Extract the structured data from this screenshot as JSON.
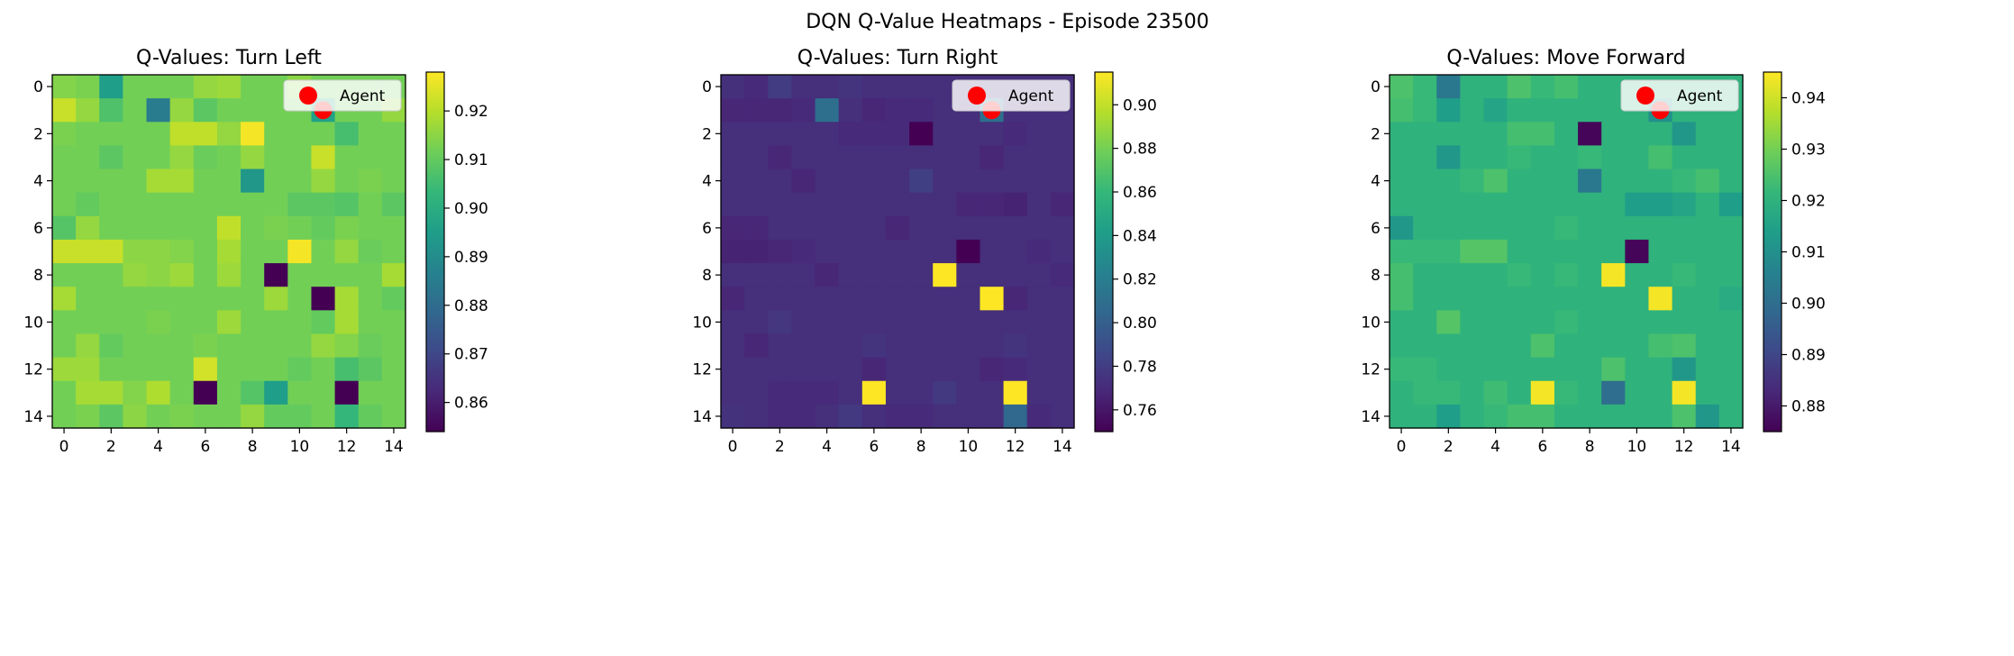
{
  "figure_title": "DQN Q-Value Heatmaps - Episode 23500",
  "chart_data": [
    {
      "type": "heatmap",
      "title": "Q-Values: Turn Left",
      "xlabel": "",
      "ylabel": "",
      "xticks": [
        0,
        2,
        4,
        6,
        8,
        10,
        12,
        14
      ],
      "yticks": [
        0,
        2,
        4,
        6,
        8,
        10,
        12,
        14
      ],
      "colormap": "viridis",
      "vmin": 0.854,
      "vmax": 0.928,
      "colorbar_ticks": [
        0.86,
        0.87,
        0.88,
        0.89,
        0.9,
        0.91,
        0.92
      ],
      "colorbar_tick_labels": [
        "0.86",
        "0.87",
        "0.88",
        "0.89",
        "0.90",
        "0.91",
        "0.92"
      ],
      "legend": {
        "label": "Agent",
        "placement": "upper right"
      },
      "agent": {
        "row": 1,
        "col": 11,
        "color": "#ff0000"
      },
      "values": [
        [
          0.914,
          0.913,
          0.895,
          0.912,
          0.912,
          0.912,
          0.916,
          0.917,
          0.912,
          0.912,
          0.915,
          0.912,
          0.912,
          0.912,
          0.912
        ],
        [
          0.922,
          0.916,
          0.907,
          0.912,
          0.885,
          0.916,
          0.909,
          0.912,
          0.912,
          0.912,
          0.912,
          0.896,
          0.912,
          0.912,
          0.916
        ],
        [
          0.913,
          0.912,
          0.912,
          0.912,
          0.912,
          0.921,
          0.921,
          0.916,
          0.927,
          0.912,
          0.912,
          0.912,
          0.906,
          0.912,
          0.912
        ],
        [
          0.912,
          0.912,
          0.909,
          0.912,
          0.912,
          0.916,
          0.911,
          0.912,
          0.916,
          0.912,
          0.912,
          0.922,
          0.912,
          0.912,
          0.912
        ],
        [
          0.912,
          0.912,
          0.912,
          0.912,
          0.918,
          0.918,
          0.912,
          0.912,
          0.893,
          0.912,
          0.912,
          0.916,
          0.912,
          0.913,
          0.912
        ],
        [
          0.912,
          0.91,
          0.912,
          0.912,
          0.912,
          0.912,
          0.912,
          0.912,
          0.912,
          0.912,
          0.909,
          0.909,
          0.908,
          0.912,
          0.909
        ],
        [
          0.908,
          0.916,
          0.912,
          0.912,
          0.912,
          0.912,
          0.912,
          0.921,
          0.912,
          0.913,
          0.912,
          0.91,
          0.913,
          0.912,
          0.912
        ],
        [
          0.922,
          0.922,
          0.922,
          0.915,
          0.915,
          0.914,
          0.912,
          0.918,
          0.912,
          0.912,
          0.927,
          0.912,
          0.916,
          0.911,
          0.912
        ],
        [
          0.912,
          0.912,
          0.912,
          0.916,
          0.915,
          0.917,
          0.912,
          0.917,
          0.912,
          0.854,
          0.912,
          0.912,
          0.912,
          0.912,
          0.918
        ],
        [
          0.918,
          0.912,
          0.912,
          0.912,
          0.912,
          0.912,
          0.912,
          0.912,
          0.912,
          0.917,
          0.912,
          0.854,
          0.918,
          0.912,
          0.91
        ],
        [
          0.912,
          0.912,
          0.912,
          0.912,
          0.913,
          0.912,
          0.912,
          0.917,
          0.912,
          0.912,
          0.912,
          0.91,
          0.918,
          0.912,
          0.912
        ],
        [
          0.912,
          0.916,
          0.91,
          0.912,
          0.912,
          0.912,
          0.913,
          0.912,
          0.912,
          0.912,
          0.912,
          0.916,
          0.914,
          0.911,
          0.912
        ],
        [
          0.917,
          0.917,
          0.912,
          0.912,
          0.912,
          0.912,
          0.923,
          0.912,
          0.912,
          0.912,
          0.91,
          0.912,
          0.906,
          0.909,
          0.912
        ],
        [
          0.912,
          0.918,
          0.918,
          0.914,
          0.919,
          0.912,
          0.854,
          0.912,
          0.908,
          0.895,
          0.912,
          0.912,
          0.854,
          0.912,
          0.912
        ],
        [
          0.912,
          0.913,
          0.909,
          0.915,
          0.912,
          0.913,
          0.912,
          0.912,
          0.916,
          0.91,
          0.91,
          0.912,
          0.903,
          0.91,
          0.912
        ]
      ]
    },
    {
      "type": "heatmap",
      "title": "Q-Values: Turn Right",
      "xlabel": "",
      "ylabel": "",
      "xticks": [
        0,
        2,
        4,
        6,
        8,
        10,
        12,
        14
      ],
      "yticks": [
        0,
        2,
        4,
        6,
        8,
        10,
        12,
        14
      ],
      "colormap": "viridis",
      "vmin": 0.75,
      "vmax": 0.915,
      "colorbar_ticks": [
        0.76,
        0.78,
        0.8,
        0.82,
        0.84,
        0.86,
        0.88,
        0.9
      ],
      "colorbar_tick_labels": [
        "0.76",
        "0.78",
        "0.80",
        "0.82",
        "0.84",
        "0.86",
        "0.88",
        "0.90"
      ],
      "legend": {
        "label": "Agent",
        "placement": "upper right"
      },
      "agent": {
        "row": 1,
        "col": 11,
        "color": "#ff0000"
      },
      "values": [
        [
          0.773,
          0.77,
          0.78,
          0.772,
          0.772,
          0.775,
          0.772,
          0.772,
          0.772,
          0.772,
          0.772,
          0.772,
          0.772,
          0.772,
          0.772
        ],
        [
          0.768,
          0.768,
          0.768,
          0.77,
          0.81,
          0.772,
          0.768,
          0.77,
          0.77,
          0.772,
          0.772,
          0.81,
          0.772,
          0.772,
          0.772
        ],
        [
          0.772,
          0.772,
          0.772,
          0.772,
          0.772,
          0.77,
          0.77,
          0.77,
          0.75,
          0.772,
          0.772,
          0.772,
          0.77,
          0.772,
          0.772
        ],
        [
          0.772,
          0.772,
          0.768,
          0.772,
          0.772,
          0.772,
          0.772,
          0.772,
          0.772,
          0.772,
          0.772,
          0.768,
          0.772,
          0.772,
          0.772
        ],
        [
          0.772,
          0.772,
          0.772,
          0.768,
          0.772,
          0.772,
          0.772,
          0.772,
          0.781,
          0.772,
          0.772,
          0.772,
          0.772,
          0.772,
          0.772
        ],
        [
          0.772,
          0.772,
          0.772,
          0.772,
          0.772,
          0.772,
          0.772,
          0.772,
          0.772,
          0.772,
          0.768,
          0.768,
          0.766,
          0.772,
          0.768
        ],
        [
          0.768,
          0.768,
          0.772,
          0.772,
          0.772,
          0.772,
          0.772,
          0.768,
          0.772,
          0.772,
          0.772,
          0.772,
          0.772,
          0.772,
          0.772
        ],
        [
          0.766,
          0.766,
          0.768,
          0.77,
          0.772,
          0.772,
          0.772,
          0.772,
          0.772,
          0.772,
          0.75,
          0.772,
          0.772,
          0.77,
          0.772
        ],
        [
          0.772,
          0.772,
          0.772,
          0.772,
          0.768,
          0.772,
          0.772,
          0.772,
          0.772,
          0.915,
          0.772,
          0.772,
          0.772,
          0.772,
          0.77
        ],
        [
          0.768,
          0.772,
          0.772,
          0.772,
          0.772,
          0.772,
          0.772,
          0.772,
          0.772,
          0.772,
          0.772,
          0.915,
          0.768,
          0.772,
          0.772
        ],
        [
          0.772,
          0.772,
          0.776,
          0.772,
          0.772,
          0.772,
          0.772,
          0.772,
          0.772,
          0.772,
          0.772,
          0.772,
          0.772,
          0.772,
          0.772
        ],
        [
          0.772,
          0.768,
          0.772,
          0.772,
          0.772,
          0.772,
          0.775,
          0.772,
          0.772,
          0.772,
          0.772,
          0.772,
          0.775,
          0.772,
          0.772
        ],
        [
          0.772,
          0.772,
          0.772,
          0.772,
          0.772,
          0.772,
          0.768,
          0.772,
          0.772,
          0.772,
          0.772,
          0.768,
          0.77,
          0.772,
          0.772
        ],
        [
          0.772,
          0.772,
          0.77,
          0.77,
          0.77,
          0.772,
          0.915,
          0.772,
          0.772,
          0.778,
          0.772,
          0.772,
          0.915,
          0.772,
          0.772
        ],
        [
          0.774,
          0.772,
          0.77,
          0.77,
          0.772,
          0.778,
          0.772,
          0.77,
          0.77,
          0.772,
          0.772,
          0.772,
          0.805,
          0.77,
          0.772
        ]
      ]
    },
    {
      "type": "heatmap",
      "title": "Q-Values: Move Forward",
      "xlabel": "",
      "ylabel": "",
      "xticks": [
        0,
        2,
        4,
        6,
        8,
        10,
        12,
        14
      ],
      "yticks": [
        0,
        2,
        4,
        6,
        8,
        10,
        12,
        14
      ],
      "colormap": "viridis",
      "vmin": 0.875,
      "vmax": 0.945,
      "colorbar_ticks": [
        0.88,
        0.89,
        0.9,
        0.91,
        0.92,
        0.93,
        0.94
      ],
      "colorbar_tick_labels": [
        "0.88",
        "0.89",
        "0.90",
        "0.91",
        "0.92",
        "0.93",
        "0.94"
      ],
      "legend": {
        "label": "Agent",
        "placement": "upper right"
      },
      "agent": {
        "row": 1,
        "col": 11,
        "color": "#ff0000"
      },
      "values": [
        [
          0.925,
          0.922,
          0.903,
          0.92,
          0.92,
          0.925,
          0.922,
          0.924,
          0.92,
          0.92,
          0.92,
          0.92,
          0.92,
          0.92,
          0.92
        ],
        [
          0.924,
          0.922,
          0.914,
          0.92,
          0.916,
          0.92,
          0.92,
          0.92,
          0.92,
          0.92,
          0.92,
          0.91,
          0.92,
          0.92,
          0.92
        ],
        [
          0.92,
          0.92,
          0.92,
          0.92,
          0.92,
          0.924,
          0.924,
          0.92,
          0.876,
          0.92,
          0.92,
          0.92,
          0.912,
          0.92,
          0.92
        ],
        [
          0.92,
          0.92,
          0.912,
          0.92,
          0.92,
          0.922,
          0.92,
          0.92,
          0.922,
          0.92,
          0.92,
          0.924,
          0.92,
          0.92,
          0.92
        ],
        [
          0.92,
          0.92,
          0.92,
          0.922,
          0.925,
          0.92,
          0.92,
          0.92,
          0.903,
          0.92,
          0.92,
          0.92,
          0.922,
          0.924,
          0.92
        ],
        [
          0.92,
          0.92,
          0.92,
          0.92,
          0.92,
          0.92,
          0.92,
          0.92,
          0.92,
          0.92,
          0.914,
          0.914,
          0.916,
          0.92,
          0.914
        ],
        [
          0.912,
          0.92,
          0.92,
          0.92,
          0.92,
          0.92,
          0.92,
          0.922,
          0.92,
          0.92,
          0.92,
          0.92,
          0.92,
          0.92,
          0.92
        ],
        [
          0.922,
          0.922,
          0.922,
          0.926,
          0.926,
          0.92,
          0.92,
          0.92,
          0.92,
          0.92,
          0.876,
          0.92,
          0.92,
          0.92,
          0.92
        ],
        [
          0.924,
          0.92,
          0.92,
          0.92,
          0.92,
          0.922,
          0.92,
          0.922,
          0.92,
          0.944,
          0.92,
          0.92,
          0.922,
          0.92,
          0.92
        ],
        [
          0.924,
          0.92,
          0.92,
          0.92,
          0.92,
          0.92,
          0.92,
          0.92,
          0.92,
          0.92,
          0.92,
          0.944,
          0.92,
          0.92,
          0.918
        ],
        [
          0.92,
          0.92,
          0.926,
          0.92,
          0.92,
          0.92,
          0.92,
          0.922,
          0.92,
          0.92,
          0.92,
          0.92,
          0.92,
          0.92,
          0.92
        ],
        [
          0.92,
          0.92,
          0.92,
          0.92,
          0.92,
          0.92,
          0.925,
          0.92,
          0.92,
          0.92,
          0.92,
          0.924,
          0.925,
          0.92,
          0.92
        ],
        [
          0.922,
          0.922,
          0.92,
          0.92,
          0.92,
          0.92,
          0.92,
          0.92,
          0.92,
          0.925,
          0.92,
          0.92,
          0.912,
          0.92,
          0.92
        ],
        [
          0.92,
          0.922,
          0.922,
          0.92,
          0.923,
          0.92,
          0.944,
          0.922,
          0.92,
          0.9,
          0.92,
          0.92,
          0.944,
          0.92,
          0.92
        ],
        [
          0.92,
          0.92,
          0.914,
          0.92,
          0.922,
          0.924,
          0.924,
          0.92,
          0.92,
          0.92,
          0.92,
          0.92,
          0.925,
          0.912,
          0.92
        ]
      ]
    }
  ]
}
